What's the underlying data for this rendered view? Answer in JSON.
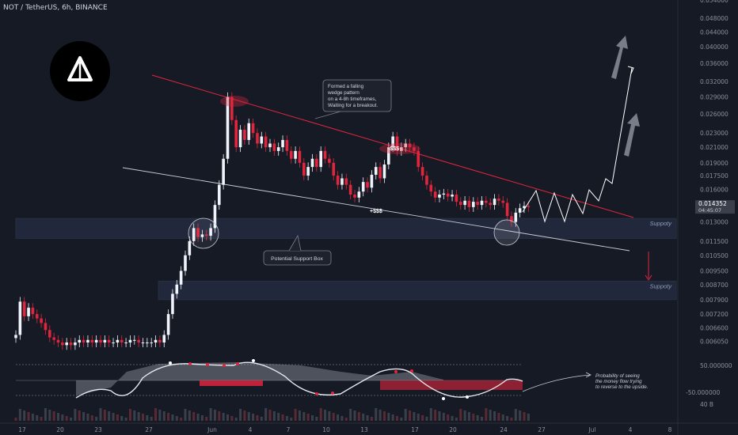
{
  "header": {
    "title": "NOT / TetherUS, 6h, BINANCE"
  },
  "colors": {
    "up": "#f0f3fa",
    "down": "#e0253d",
    "background": "#161a25",
    "trendline_red": "#e0253d",
    "zone": "#2a3550",
    "accent_label": "#2962ff"
  },
  "price_badge": {
    "price": "0.014352",
    "countdown": "04:45:07"
  },
  "annotations": {
    "wedge_note_lines": [
      "Formed a falling",
      "wedge pattern",
      "on a 4-8h timeframes,",
      "Waiting for a breakout."
    ],
    "support_box_label": "Potential Support Box",
    "zone_upper_label": "Suppoty",
    "zone_lower_label": "Suppoty",
    "liquidity_low": "+$$$",
    "liquidity_high": "-$$$",
    "oscillator_note_lines": [
      "Probability of seeing",
      "the money flow trying",
      "to reverse to the upside."
    ]
  },
  "oscillator_axis": {
    "upper": "50.000000",
    "lower": "-50.000000",
    "volume": "40 B"
  },
  "logo_icon": "warning-triangle-icon",
  "chart_data": {
    "type": "candlestick",
    "symbol": "NOT / TetherUS",
    "timeframe": "6h",
    "exchange": "BINANCE",
    "y_scale": "log",
    "ylim": [
      0.00545,
      0.054
    ],
    "y_ticks": [
      "0.054000",
      "0.048000",
      "0.044000",
      "0.040000",
      "0.036000",
      "0.032000",
      "0.029000",
      "0.026000",
      "0.023000",
      "0.021000",
      "0.019000",
      "0.017500",
      "0.016000",
      "0.014352",
      "0.013000",
      "0.011500",
      "0.010500",
      "0.009500",
      "0.008700",
      "0.007900",
      "0.007200",
      "0.006600",
      "0.006050"
    ],
    "x_ticks": [
      "17",
      "20",
      "23",
      "27",
      "Jun",
      "4",
      "7",
      "10",
      "13",
      "17",
      "20",
      "24",
      "27",
      "Jul",
      "4",
      "8"
    ],
    "series": [
      {
        "name": "NOT/USDT",
        "close": [
          0.0063,
          0.0078,
          0.0071,
          0.0075,
          0.0072,
          0.007,
          0.0068,
          0.0065,
          0.0062,
          0.0061,
          0.006,
          0.0059,
          0.006,
          0.0059,
          0.006,
          0.0061,
          0.006,
          0.0061,
          0.006,
          0.0061,
          0.006,
          0.0061,
          0.006,
          0.006,
          0.0061,
          0.006,
          0.006,
          0.0061,
          0.0061,
          0.006,
          0.006,
          0.006,
          0.006,
          0.0061,
          0.006,
          0.0063,
          0.0072,
          0.0082,
          0.0087,
          0.0095,
          0.0105,
          0.0115,
          0.0125,
          0.0118,
          0.012,
          0.0119,
          0.0125,
          0.0145,
          0.0165,
          0.0195,
          0.029,
          0.025,
          0.021,
          0.0235,
          0.022,
          0.0245,
          0.023,
          0.0215,
          0.0225,
          0.021,
          0.0215,
          0.0205,
          0.021,
          0.022,
          0.0205,
          0.0195,
          0.0205,
          0.019,
          0.0175,
          0.0185,
          0.0195,
          0.0185,
          0.0205,
          0.0195,
          0.019,
          0.0175,
          0.0165,
          0.0172,
          0.0165,
          0.0155,
          0.0152,
          0.0158,
          0.0168,
          0.0162,
          0.0176,
          0.0185,
          0.0172,
          0.0188,
          0.021,
          0.0225,
          0.0205,
          0.021,
          0.0215,
          0.021,
          0.0205,
          0.0185,
          0.0175,
          0.0165,
          0.0158,
          0.0152,
          0.0155,
          0.0156,
          0.0153,
          0.0155,
          0.0148,
          0.0145,
          0.0149,
          0.0143,
          0.0148,
          0.0145,
          0.0149,
          0.0147,
          0.0145,
          0.0151,
          0.0149,
          0.0147,
          0.0135,
          0.013,
          0.0138,
          0.0142,
          0.0144,
          0.0143
        ]
      }
    ],
    "projection": [
      "zigzag consolidation then breakout toward 0.036"
    ],
    "zones": [
      {
        "label": "Suppoty",
        "from": 0.0117,
        "to": 0.0133
      },
      {
        "label": "Suppoty",
        "from": 0.0079,
        "to": 0.0089
      }
    ],
    "oscillator": {
      "upper_level": 50,
      "lower_level": -50
    }
  }
}
